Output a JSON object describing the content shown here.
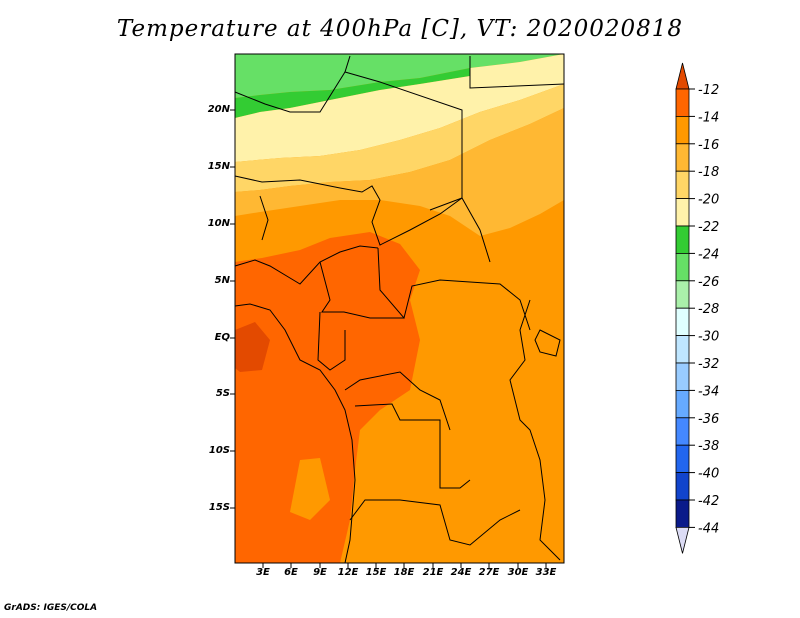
{
  "title": "Temperature at 400hPa [C], VT: 2020020818",
  "credit": "GrADS: IGES/COLA",
  "map": {
    "lat_labels": [
      "20N",
      "15N",
      "10N",
      "5N",
      "EQ",
      "5S",
      "10S",
      "15S"
    ],
    "lon_labels": [
      "3E",
      "6E",
      "9E",
      "12E",
      "15E",
      "18E",
      "21E",
      "24E",
      "27E",
      "30E",
      "33E"
    ]
  },
  "colorbar": {
    "labels": [
      "-12",
      "-14",
      "-16",
      "-18",
      "-20",
      "-22",
      "-24",
      "-26",
      "-28",
      "-30",
      "-32",
      "-34",
      "-36",
      "-38",
      "-40",
      "-42",
      "-44"
    ],
    "colors": [
      "#e34a00",
      "#ff6600",
      "#ff9900",
      "#ffb833",
      "#ffd666",
      "#fff2aa",
      "#33cc33",
      "#66e066",
      "#aaf0aa",
      "#e0ffff",
      "#bfe6ff",
      "#99ccff",
      "#66aaff",
      "#4488ff",
      "#2266ee",
      "#1144cc",
      "#0a1a8a",
      "#dcdcf5"
    ]
  },
  "colors": {
    "deep_orange": "#ff6600",
    "orange": "#ff9900",
    "light_orange": "#ffb833",
    "yellow": "#ffd666",
    "pale_yellow": "#fff2aa",
    "green": "#33cc33",
    "light_green": "#66e066"
  }
}
